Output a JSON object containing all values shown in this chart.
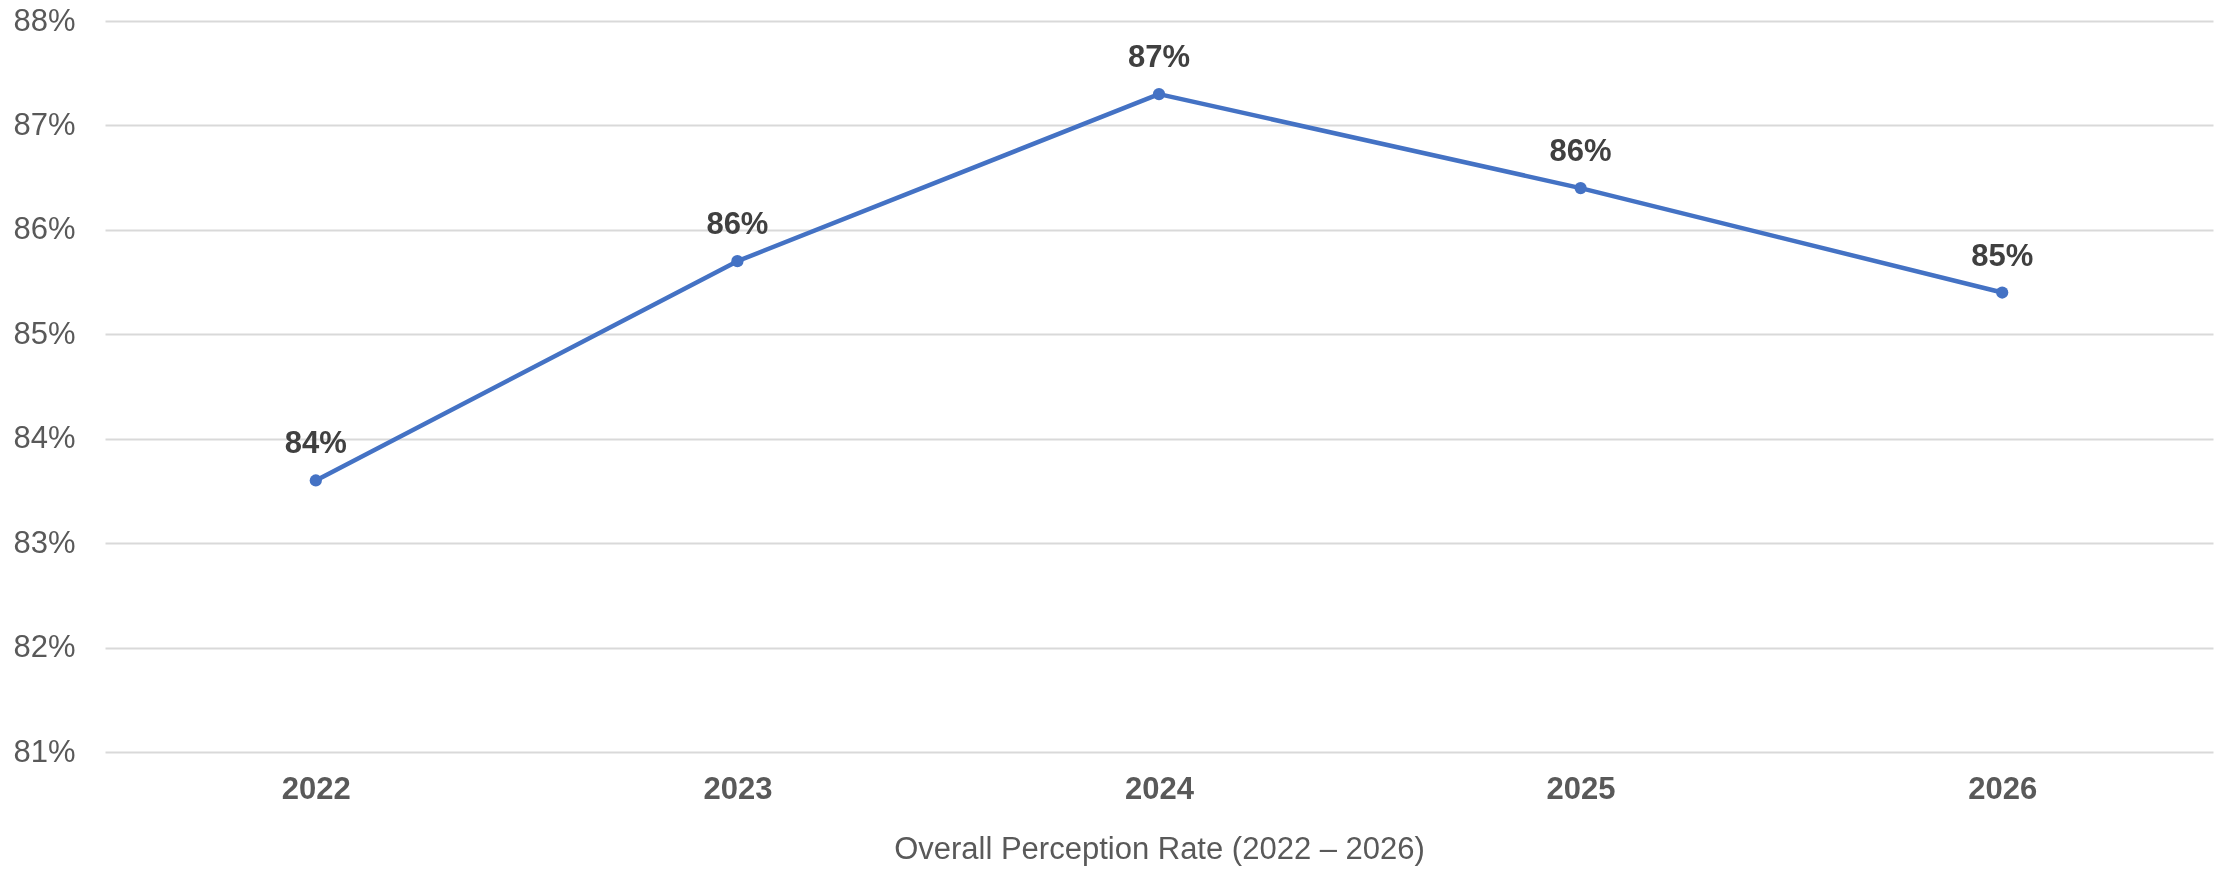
{
  "chart_data": {
    "type": "line",
    "xlabel": "Overall Perception Rate (2022 – 2026)",
    "categories": [
      "2022",
      "2023",
      "2024",
      "2025",
      "2026"
    ],
    "values": [
      83.6,
      85.7,
      87.3,
      86.4,
      85.4
    ],
    "color": "#4472c4",
    "value_labels": [
      "84%",
      "86%",
      "87%",
      "86%",
      "85%"
    ],
    "ylim": [
      81,
      88
    ],
    "yticks": [
      {
        "value": 81,
        "label": "81%"
      },
      {
        "value": 82,
        "label": "82%"
      },
      {
        "value": 83,
        "label": "83%"
      },
      {
        "value": 84,
        "label": "84%"
      },
      {
        "value": 85,
        "label": "85%"
      },
      {
        "value": 86,
        "label": "86%"
      },
      {
        "value": 87,
        "label": "87%"
      },
      {
        "value": 88,
        "label": "88%"
      }
    ],
    "grid": "y",
    "marker": "circle",
    "line_style": "solid"
  }
}
